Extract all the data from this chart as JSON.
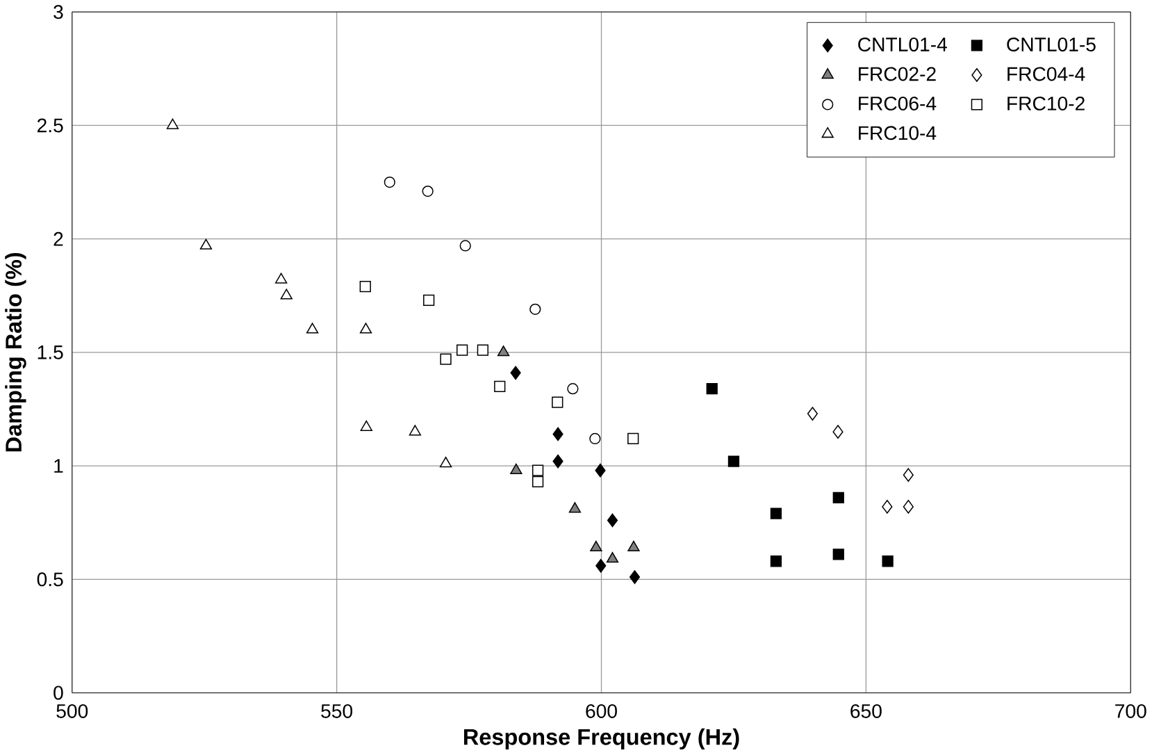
{
  "chart_data": {
    "type": "scatter",
    "xlabel": "Response Frequency (Hz)",
    "ylabel": "Damping Ratio (%)",
    "xlim": [
      500,
      700
    ],
    "ylim": [
      0,
      3
    ],
    "xticks": [
      500,
      550,
      600,
      650,
      700
    ],
    "yticks": [
      0,
      0.5,
      1,
      1.5,
      2,
      2.5,
      3
    ],
    "grid": true,
    "legend": "top right",
    "series": [
      {
        "name": "CNTL01-4",
        "marker": "diamond",
        "color": "#000000",
        "x": [
          583.8,
          591.8,
          591.8,
          599.8,
          602.1,
          599.9,
          606.3
        ],
        "values": [
          1.41,
          1.14,
          1.02,
          0.98,
          0.76,
          0.56,
          0.51
        ]
      },
      {
        "name": "CNTL01-5",
        "marker": "square",
        "color": "#000000",
        "x": [
          620.9,
          625.0,
          633.0,
          633.0,
          644.8,
          644.8,
          654.1
        ],
        "values": [
          1.34,
          1.02,
          0.79,
          0.58,
          0.86,
          0.61,
          0.58
        ]
      },
      {
        "name": "FRC02-2",
        "marker": "triangle",
        "color": "#808080",
        "x": [
          581.5,
          583.9,
          595.0,
          599.0,
          602.1,
          606.1
        ],
        "values": [
          1.5,
          0.98,
          0.81,
          0.64,
          0.59,
          0.64
        ]
      },
      {
        "name": "FRC04-4",
        "marker": "diamond",
        "color": "#ffffff",
        "x": [
          639.9,
          644.7,
          658.0,
          654.0,
          658.0
        ],
        "values": [
          1.23,
          1.15,
          0.96,
          0.82,
          0.82
        ]
      },
      {
        "name": "FRC06-4",
        "marker": "circle",
        "color": "#ffffff",
        "x": [
          560.0,
          567.2,
          574.3,
          587.5,
          594.6,
          598.8
        ],
        "values": [
          2.25,
          2.21,
          1.97,
          1.69,
          1.34,
          1.12
        ]
      },
      {
        "name": "FRC10-2",
        "marker": "square",
        "color": "#ffffff",
        "x": [
          555.4,
          567.4,
          570.6,
          573.7,
          577.6,
          580.8,
          591.7,
          588.0,
          588.0,
          606.0
        ],
        "values": [
          1.79,
          1.73,
          1.47,
          1.51,
          1.51,
          1.35,
          1.28,
          0.98,
          0.93,
          1.12
        ]
      },
      {
        "name": "FRC10-4",
        "marker": "triangle",
        "color": "#ffffff",
        "x": [
          519.0,
          525.3,
          539.5,
          540.5,
          545.4,
          555.5,
          555.6,
          564.8,
          570.6
        ],
        "values": [
          2.5,
          1.97,
          1.82,
          1.75,
          1.6,
          1.6,
          1.17,
          1.15,
          1.01
        ]
      }
    ]
  }
}
